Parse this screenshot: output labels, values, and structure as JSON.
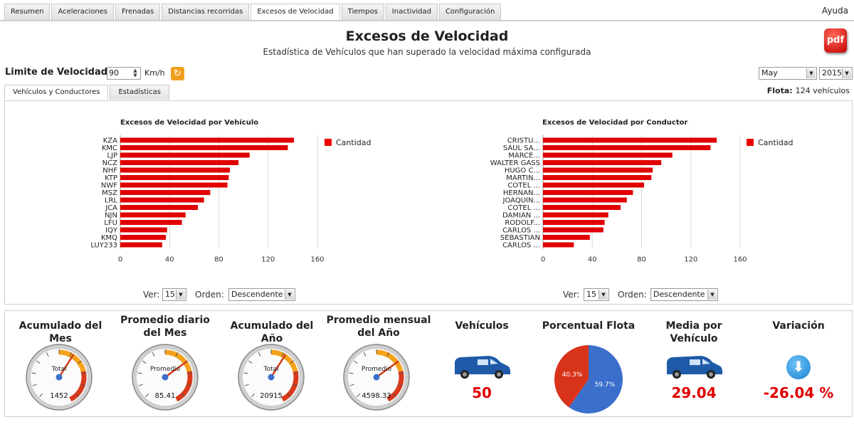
{
  "tabs": [
    {
      "label": "Resumen"
    },
    {
      "label": "Aceleraciones"
    },
    {
      "label": "Frenadas"
    },
    {
      "label": "Distancias recorridas"
    },
    {
      "label": "Excesos de Velocidad",
      "active": true
    },
    {
      "label": "Tiempos"
    },
    {
      "label": "Inactividad"
    },
    {
      "label": "Configuración"
    }
  ],
  "help_label": "Ayuda",
  "title": "Excesos de Velocidad",
  "subtitle": "Estadística de Vehículos que han superado la velocidad máxima configurada",
  "pdf_label": "pdf",
  "limit": {
    "label": "Limite de Velocidad:",
    "value": "90",
    "unit": "Km/h"
  },
  "period": {
    "month": "May",
    "year": "2015"
  },
  "subtabs": [
    {
      "label": "Vehículos y Conductores",
      "active": true
    },
    {
      "label": "Estadísticas"
    }
  ],
  "flota": {
    "label": "Flota:",
    "value": "124 vehículos"
  },
  "colors": {
    "bar": "#e00000",
    "accent": "#e00000",
    "pie_blue": "#3a6fcc",
    "pie_red": "#d8341c"
  },
  "charts": {
    "ver_label": "Ver:",
    "ver_value": "15",
    "orden_label": "Orden:",
    "orden_value": "Descendente"
  },
  "chart_data": [
    {
      "type": "bar",
      "orientation": "horizontal",
      "title": "Excesos de Velocidad por Vehículo",
      "categories": [
        "KZA",
        "KMC",
        "LJP",
        "NCZ",
        "NHF",
        "KTP",
        "NWF",
        "MSZ",
        "LRL",
        "JCA",
        "NJN",
        "LFU",
        "IQY",
        "KMQ",
        "LUY233"
      ],
      "series": [
        {
          "name": "Cantidad",
          "values": [
            141,
            136,
            105,
            96,
            89,
            88,
            87,
            73,
            68,
            63,
            53,
            50,
            38,
            37,
            34
          ]
        }
      ],
      "xlim": [
        0,
        160
      ],
      "xticks": [
        0,
        40,
        80,
        120,
        160
      ],
      "grid": true,
      "legend": "right"
    },
    {
      "type": "bar",
      "orientation": "horizontal",
      "title": "Excesos de Velocidad por Conductor",
      "categories": [
        "CRISTU...",
        "SAUL SA...",
        "MARCE...",
        "WALTER GASS",
        "HUGO C...",
        "MARTIN...",
        "COTEL ...",
        "HERNAN...",
        "JOAQUIN...",
        "COTEL ...",
        "DAMIAN ...",
        "RODOLF...",
        "CARLOS ...",
        "SEBASTIAN",
        "CARLOS ..."
      ],
      "series": [
        {
          "name": "Cantidad",
          "values": [
            141,
            136,
            105,
            96,
            89,
            88,
            82,
            73,
            68,
            63,
            53,
            50,
            49,
            38,
            25
          ]
        }
      ],
      "xlim": [
        0,
        160
      ],
      "xticks": [
        0,
        40,
        80,
        120,
        160
      ],
      "grid": true,
      "legend": "right"
    }
  ],
  "kpis": {
    "acum_mes": {
      "title": "Acumulado del Mes",
      "gauge_label": "Total",
      "value": "1452",
      "level": 0.62
    },
    "prom_mes": {
      "title": "Promedio diario del Mes",
      "gauge_label": "Promedio",
      "value": "85.41",
      "level": 0.7
    },
    "acum_anio": {
      "title": "Acumulado del Año",
      "gauge_label": "Total",
      "value": "20915",
      "level": 0.62
    },
    "prom_anio": {
      "title": "Promedio mensual del Año",
      "gauge_label": "Promedio",
      "value": "4598.33",
      "level": 0.7
    },
    "vehiculos": {
      "title": "Vehículos",
      "value": "50"
    },
    "porcentual": {
      "title": "Porcentual Flota",
      "blue_pct": 59.7,
      "red_pct": 40.3,
      "blue_label": "59.7%",
      "red_label": "40.3%"
    },
    "media": {
      "title": "Media por Vehículo",
      "value": "29.04"
    },
    "variacion": {
      "title": "Variación",
      "value": "-26.04 %"
    }
  }
}
